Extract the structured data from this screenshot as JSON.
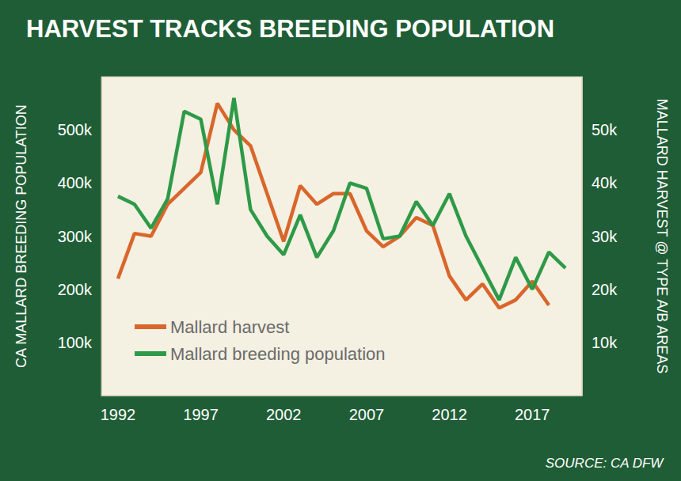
{
  "chart_data": {
    "type": "line",
    "title": "HARVEST TRACKS BREEDING POPULATION",
    "source": "SOURCE: CA DFW",
    "ylabel": "CA MALLARD BREEDING POPULATION",
    "y2label": "MALLARD HARVEST @ TYPE A/B AREAS",
    "x": [
      1992,
      1993,
      1994,
      1995,
      1996,
      1997,
      1998,
      1999,
      2000,
      2001,
      2002,
      2003,
      2004,
      2005,
      2006,
      2007,
      2008,
      2009,
      2010,
      2011,
      2012,
      2013,
      2014,
      2015,
      2016,
      2017,
      2018,
      2019
    ],
    "xlim": [
      1991,
      2020
    ],
    "xticks": [
      1992,
      1997,
      2002,
      2007,
      2012,
      2017
    ],
    "ylim": [
      0,
      600000
    ],
    "yticks": [
      {
        "value": 100000,
        "label": "100k"
      },
      {
        "value": 200000,
        "label": "200k"
      },
      {
        "value": 300000,
        "label": "300k"
      },
      {
        "value": 400000,
        "label": "400k"
      },
      {
        "value": 500000,
        "label": "500k"
      }
    ],
    "y2lim": [
      0,
      60000
    ],
    "y2ticks": [
      {
        "value": 10000,
        "label": "10k"
      },
      {
        "value": 20000,
        "label": "20k"
      },
      {
        "value": 30000,
        "label": "30k"
      },
      {
        "value": 40000,
        "label": "40k"
      },
      {
        "value": 50000,
        "label": "50k"
      }
    ],
    "grid": false,
    "legend": "lower left",
    "series": [
      {
        "name": "Mallard harvest",
        "color": "#d9662a",
        "axis": "y2",
        "values": [
          22000,
          30500,
          30000,
          36000,
          39000,
          42000,
          55000,
          50000,
          47000,
          38000,
          29000,
          39500,
          36000,
          38000,
          38000,
          31000,
          28000,
          30000,
          33500,
          32000,
          22500,
          18000,
          21000,
          16500,
          18000,
          21500,
          17000,
          null
        ]
      },
      {
        "name": "Mallard breeding population",
        "color": "#2e9a48",
        "axis": "y",
        "values": [
          375000,
          360000,
          315000,
          370000,
          535000,
          520000,
          360000,
          560000,
          350000,
          300000,
          265000,
          340000,
          260000,
          310000,
          400000,
          390000,
          295000,
          300000,
          365000,
          320000,
          380000,
          300000,
          240000,
          180000,
          260000,
          200000,
          270000,
          240000
        ]
      }
    ]
  }
}
